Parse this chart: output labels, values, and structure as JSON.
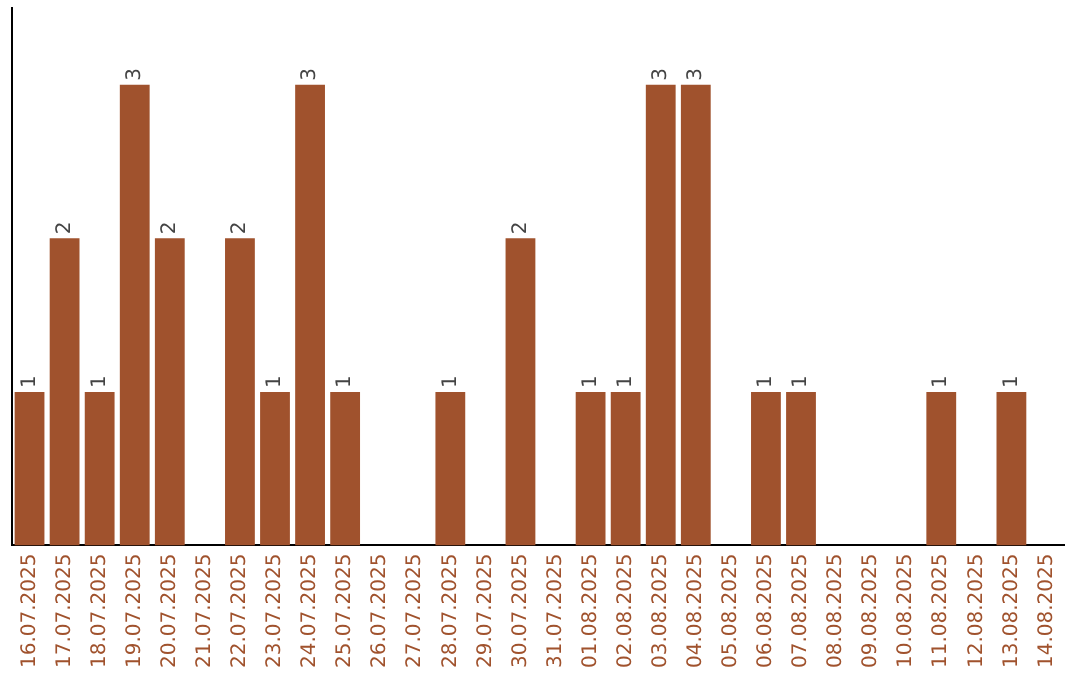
{
  "chart_data": {
    "type": "bar",
    "categories": [
      "16.07.2025",
      "17.07.2025",
      "18.07.2025",
      "19.07.2025",
      "20.07.2025",
      "21.07.2025",
      "22.07.2025",
      "23.07.2025",
      "24.07.2025",
      "25.07.2025",
      "26.07.2025",
      "27.07.2025",
      "28.07.2025",
      "29.07.2025",
      "30.07.2025",
      "31.07.2025",
      "01.08.2025",
      "02.08.2025",
      "03.08.2025",
      "04.08.2025",
      "05.08.2025",
      "06.08.2025",
      "07.08.2025",
      "08.08.2025",
      "09.08.2025",
      "10.08.2025",
      "11.08.2025",
      "12.08.2025",
      "13.08.2025",
      "14.08.2025"
    ],
    "values": [
      1,
      2,
      1,
      3,
      2,
      0,
      2,
      1,
      3,
      1,
      0,
      0,
      1,
      0,
      2,
      0,
      1,
      1,
      3,
      3,
      0,
      1,
      1,
      0,
      0,
      0,
      1,
      0,
      1,
      0
    ],
    "value_labels": [
      "1",
      "2",
      "1",
      "3",
      "2",
      null,
      "2",
      "1",
      "3",
      "1",
      null,
      null,
      "1",
      null,
      "2",
      null,
      "1",
      "1",
      "3",
      "3",
      null,
      "1",
      "1",
      null,
      null,
      null,
      "1",
      null,
      "1",
      null
    ],
    "color": "#a0522d",
    "tick_labels": "x",
    "grid": false,
    "legend": false
  }
}
